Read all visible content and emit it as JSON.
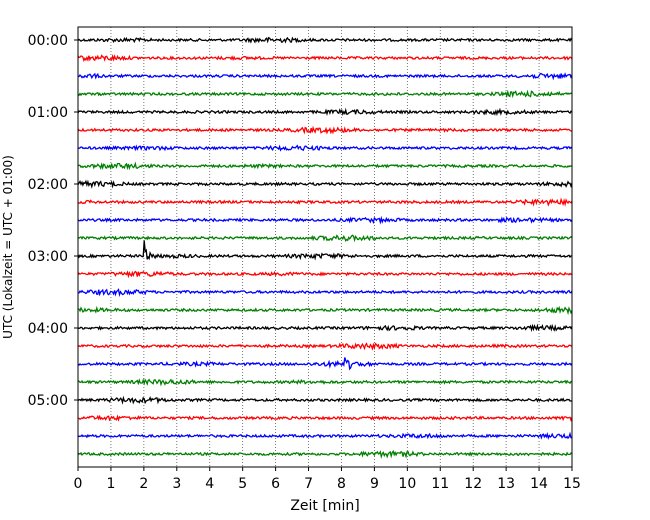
{
  "chart_data": {
    "type": "line",
    "title": "",
    "xlabel": "Zeit  [min]",
    "ylabel": "UTC (Lokalzeit = UTC + 01:00)",
    "xlim": [
      0,
      15
    ],
    "x_ticks": [
      "0",
      "1",
      "2",
      "3",
      "4",
      "5",
      "6",
      "7",
      "8",
      "9",
      "10",
      "11",
      "12",
      "13",
      "14",
      "15"
    ],
    "y_ticks": [
      "00:00",
      "01:00",
      "02:00",
      "03:00",
      "04:00",
      "05:00"
    ],
    "grid_x": true,
    "grid_style": "dotted",
    "trace_interval_min": 15,
    "trace_colors": [
      "#000000",
      "#ff0000",
      "#0000ff",
      "#008000"
    ],
    "traces": [
      {
        "start": "00:00",
        "color": "#000000"
      },
      {
        "start": "00:15",
        "color": "#ff0000"
      },
      {
        "start": "00:30",
        "color": "#0000ff"
      },
      {
        "start": "00:45",
        "color": "#008000"
      },
      {
        "start": "01:00",
        "color": "#000000"
      },
      {
        "start": "01:15",
        "color": "#ff0000"
      },
      {
        "start": "01:30",
        "color": "#0000ff"
      },
      {
        "start": "01:45",
        "color": "#008000"
      },
      {
        "start": "02:00",
        "color": "#000000"
      },
      {
        "start": "02:15",
        "color": "#ff0000"
      },
      {
        "start": "02:30",
        "color": "#0000ff"
      },
      {
        "start": "02:45",
        "color": "#008000"
      },
      {
        "start": "03:00",
        "color": "#000000"
      },
      {
        "start": "03:15",
        "color": "#ff0000"
      },
      {
        "start": "03:30",
        "color": "#0000ff"
      },
      {
        "start": "03:45",
        "color": "#008000"
      },
      {
        "start": "04:00",
        "color": "#000000"
      },
      {
        "start": "04:15",
        "color": "#ff0000"
      },
      {
        "start": "04:30",
        "color": "#0000ff"
      },
      {
        "start": "04:45",
        "color": "#008000"
      },
      {
        "start": "05:00",
        "color": "#000000"
      },
      {
        "start": "05:15",
        "color": "#ff0000"
      },
      {
        "start": "05:30",
        "color": "#0000ff"
      },
      {
        "start": "05:45",
        "color": "#008000"
      }
    ],
    "events": [
      {
        "trace_start": "03:00",
        "x_min": 2.0,
        "amplitude": "large spike"
      },
      {
        "trace_start": "04:30",
        "x_min": 8.1,
        "amplitude": "large spike"
      }
    ]
  }
}
